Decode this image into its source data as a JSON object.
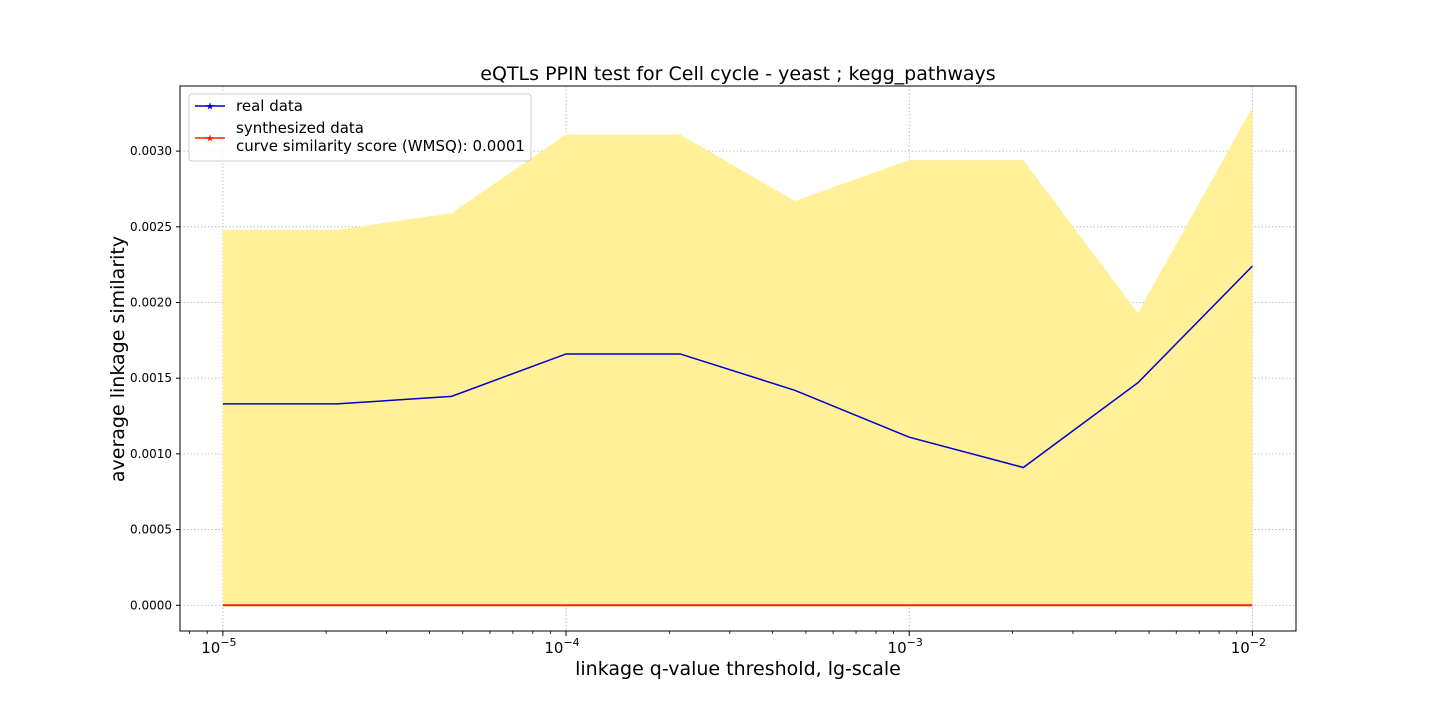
{
  "chart_data": {
    "type": "line",
    "title": "eQTLs PPIN test for Cell cycle - yeast ; kegg_pathways",
    "xlabel": "linkage q-value threshold, lg-scale",
    "ylabel": "average linkage similarity",
    "xscale": "log",
    "x": [
      1e-05,
      2.15e-05,
      4.64e-05,
      0.0001,
      0.000215,
      0.000464,
      0.001,
      0.00215,
      0.00464,
      0.01
    ],
    "xlim": [
      7.5e-06,
      0.0134
    ],
    "ylim": [
      -0.00017,
      0.00343
    ],
    "xticks": [
      {
        "value": 1e-05,
        "base": "10",
        "exp": "−5"
      },
      {
        "value": 0.0001,
        "base": "10",
        "exp": "−4"
      },
      {
        "value": 0.001,
        "base": "10",
        "exp": "−3"
      },
      {
        "value": 0.01,
        "base": "10",
        "exp": "−2"
      }
    ],
    "yticks": [
      {
        "value": 0.0,
        "label": "0.0000"
      },
      {
        "value": 0.0005,
        "label": "0.0005"
      },
      {
        "value": 0.001,
        "label": "0.0010"
      },
      {
        "value": 0.0015,
        "label": "0.0015"
      },
      {
        "value": 0.002,
        "label": "0.0020"
      },
      {
        "value": 0.0025,
        "label": "0.0025"
      },
      {
        "value": 0.003,
        "label": "0.0030"
      }
    ],
    "grid": true,
    "legend_position": "top-left",
    "band": {
      "lower": [
        0,
        0,
        0,
        0,
        0,
        0,
        0,
        0,
        0,
        0
      ],
      "upper": [
        0.00248,
        0.00248,
        0.00259,
        0.00311,
        0.00311,
        0.00267,
        0.00294,
        0.00294,
        0.00193,
        0.00329
      ],
      "color": "#fff099"
    },
    "series": [
      {
        "name": "real data",
        "color": "#0000cc",
        "values": [
          0.00133,
          0.00133,
          0.00138,
          0.00166,
          0.00166,
          0.00142,
          0.00111,
          0.00091,
          0.00147,
          0.00224
        ]
      },
      {
        "name": "synthesized data\ncurve similarity score (WMSQ): 0.0001",
        "color": "#ff2200",
        "values": [
          0,
          0,
          0,
          0,
          0,
          0,
          0,
          0,
          0,
          0
        ]
      }
    ]
  }
}
